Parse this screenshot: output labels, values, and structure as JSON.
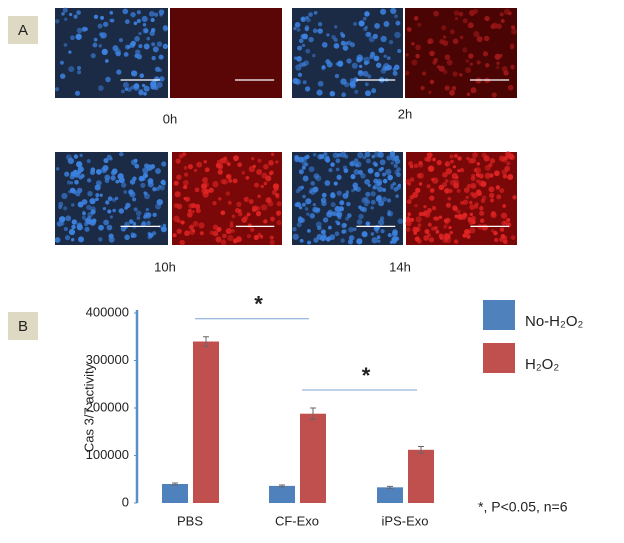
{
  "panel_a": {
    "label": "A",
    "timepoints": [
      "0h",
      "2h",
      "10h",
      "14h"
    ]
  },
  "chart_data": {
    "type": "bar",
    "label": "B",
    "ylabel": "Cas 3/7 activity",
    "categories": [
      "PBS",
      "CF-Exo",
      "iPS-Exo"
    ],
    "series": [
      {
        "name": "No-H₂O₂",
        "color": "#4f81bd",
        "values": [
          40000,
          36000,
          33000
        ],
        "errors": [
          2000,
          2000,
          2000
        ]
      },
      {
        "name": "H₂O₂",
        "color": "#c0504d",
        "values": [
          340000,
          188000,
          112000
        ],
        "errors": [
          10000,
          12000,
          7000
        ]
      }
    ],
    "ylim": [
      0,
      400000
    ],
    "yticks": [
      0,
      100000,
      200000,
      300000,
      400000
    ],
    "annotations": [
      {
        "text": "*",
        "from": 0,
        "to": 1
      },
      {
        "text": "*",
        "from": 1,
        "to": 2
      }
    ],
    "note": "*, P<0.05, n=6"
  }
}
